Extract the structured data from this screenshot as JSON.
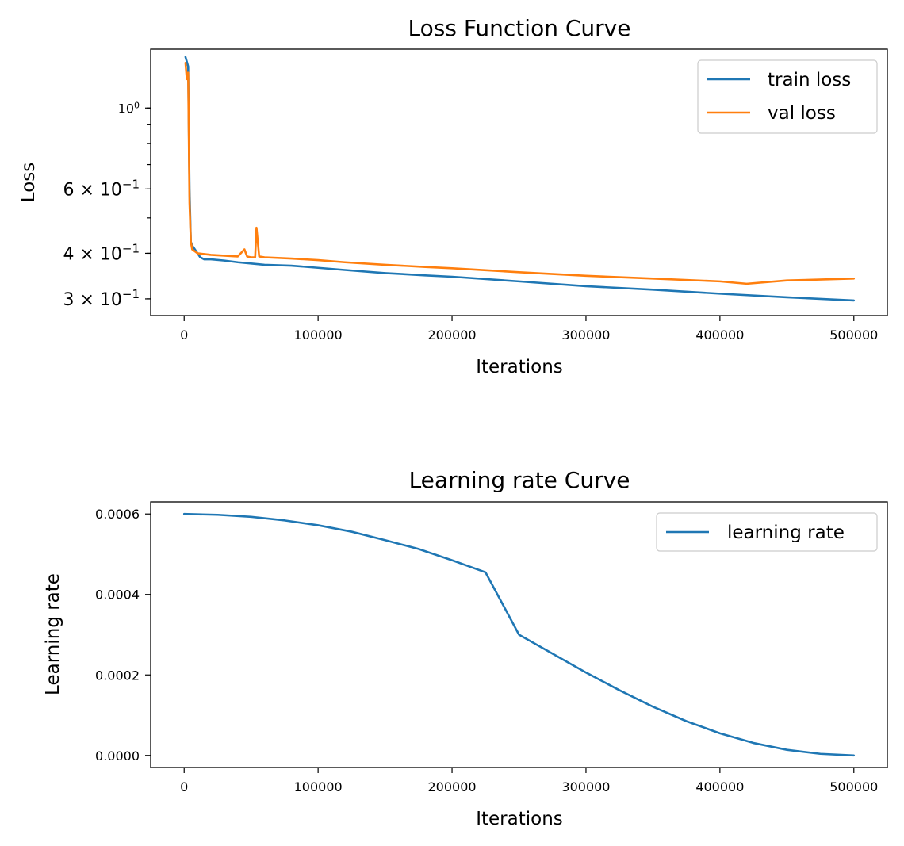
{
  "chart_data": [
    {
      "type": "line",
      "title": "Loss Function Curve",
      "xlabel": "Iterations",
      "ylabel": "Loss",
      "yscale": "log",
      "xlim": [
        -25000,
        525000
      ],
      "ylim": [
        0.27,
        1.45
      ],
      "xticks": [
        0,
        100000,
        200000,
        300000,
        400000,
        500000
      ],
      "xtick_labels": [
        "0",
        "100000",
        "200000",
        "300000",
        "400000",
        "500000"
      ],
      "yticks": [
        {
          "value": 1.0,
          "base": "10",
          "exp": "0",
          "mult": ""
        },
        {
          "value": 0.6,
          "base": "10",
          "exp": "−1",
          "mult": "6 × "
        },
        {
          "value": 0.4,
          "base": "10",
          "exp": "−1",
          "mult": "4 × "
        },
        {
          "value": 0.3,
          "base": "10",
          "exp": "−1",
          "mult": "3 × "
        }
      ],
      "grid": false,
      "legend": "top-right",
      "series": [
        {
          "name": "train loss",
          "color": "#1f77b4",
          "x": [
            1000,
            2000,
            3000,
            4000,
            5000,
            6000,
            8000,
            10000,
            12000,
            15000,
            20000,
            30000,
            40000,
            50000,
            60000,
            80000,
            100000,
            120000,
            150000,
            180000,
            200000,
            250000,
            300000,
            350000,
            400000,
            450000,
            500000
          ],
          "y": [
            1.38,
            1.34,
            1.3,
            0.6,
            0.43,
            0.42,
            0.41,
            0.4,
            0.39,
            0.385,
            0.385,
            0.382,
            0.378,
            0.375,
            0.372,
            0.37,
            0.365,
            0.36,
            0.353,
            0.348,
            0.345,
            0.335,
            0.325,
            0.318,
            0.31,
            0.303,
            0.297
          ]
        },
        {
          "name": "val loss",
          "color": "#ff7f0e",
          "x": [
            1000,
            2000,
            3000,
            4000,
            5000,
            6000,
            8000,
            10000,
            15000,
            20000,
            30000,
            40000,
            45000,
            47000,
            50000,
            53000,
            54000,
            56000,
            60000,
            80000,
            100000,
            120000,
            150000,
            180000,
            200000,
            250000,
            300000,
            350000,
            400000,
            420000,
            450000,
            500000
          ],
          "y": [
            1.33,
            1.2,
            1.25,
            0.55,
            0.43,
            0.41,
            0.405,
            0.4,
            0.398,
            0.396,
            0.394,
            0.392,
            0.41,
            0.392,
            0.39,
            0.39,
            0.47,
            0.392,
            0.39,
            0.387,
            0.383,
            0.378,
            0.372,
            0.367,
            0.364,
            0.355,
            0.347,
            0.341,
            0.335,
            0.33,
            0.337,
            0.341
          ]
        }
      ]
    },
    {
      "type": "line",
      "title": "Learning rate Curve",
      "xlabel": "Iterations",
      "ylabel": "Learning rate",
      "yscale": "linear",
      "xlim": [
        -25000,
        525000
      ],
      "ylim": [
        -3e-05,
        0.00063
      ],
      "xticks": [
        0,
        100000,
        200000,
        300000,
        400000,
        500000
      ],
      "xtick_labels": [
        "0",
        "100000",
        "200000",
        "300000",
        "400000",
        "500000"
      ],
      "yticks": [
        0.0,
        0.0002,
        0.0004,
        0.0006
      ],
      "ytick_labels": [
        "0.0000",
        "0.0002",
        "0.0004",
        "0.0006"
      ],
      "grid": false,
      "legend": "top-right",
      "series": [
        {
          "name": "learning rate",
          "color": "#1f77b4",
          "x": [
            0,
            25000,
            50000,
            75000,
            100000,
            125000,
            150000,
            175000,
            200000,
            225000,
            250000,
            275000,
            300000,
            325000,
            350000,
            375000,
            400000,
            425000,
            450000,
            475000,
            500000
          ],
          "y": [
            0.0006,
            0.000598,
            0.000593,
            0.000584,
            0.000572,
            0.000556,
            0.000535,
            0.000513,
            0.000485,
            0.000455,
            0.0003,
            0.000253,
            0.000206,
            0.000162,
            0.000121,
            8.5e-05,
            5.5e-05,
            3.1e-05,
            1.4e-05,
            4e-06,
            0.0
          ]
        }
      ]
    }
  ]
}
